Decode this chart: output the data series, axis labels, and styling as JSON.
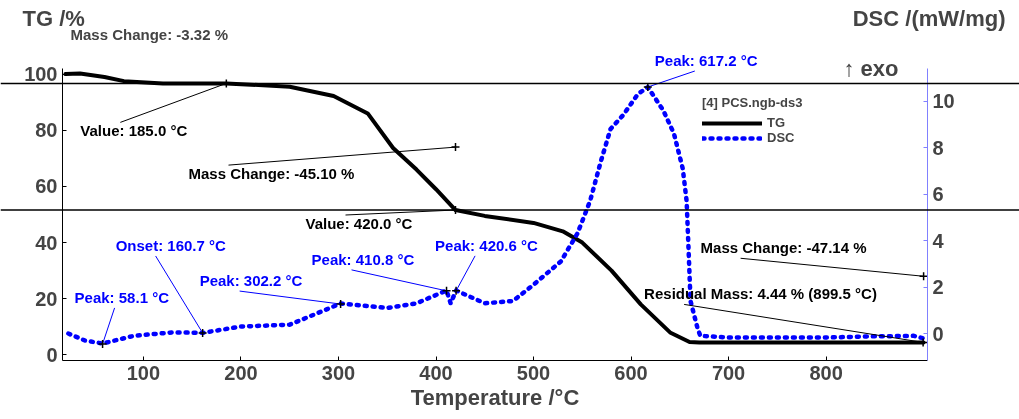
{
  "chart_data": {
    "type": "line",
    "xlabel": "Temperature /°C",
    "ylabel": "TG /%",
    "y2label": "DSC /(mW/mg)",
    "legend_title": "[4] PCS.ngb-ds3",
    "xlim": [
      17,
      904
    ],
    "xticks": [
      100,
      200,
      300,
      400,
      500,
      600,
      700,
      800
    ],
    "ylim": [
      -2,
      102
    ],
    "yticks": [
      0,
      20,
      40,
      60,
      80,
      100
    ],
    "y2lim": [
      -1.16,
      11.4
    ],
    "y2ticks": [
      0,
      2,
      4,
      6,
      8,
      10
    ],
    "grid": false,
    "legend": "top right",
    "series": [
      {
        "name": "TG",
        "color": "#000000",
        "line_style": "solid",
        "x": [
          20,
          35,
          60,
          80,
          120,
          185,
          250,
          295,
          330,
          356,
          380,
          400,
          420,
          450,
          500,
          530,
          550,
          580,
          610,
          640,
          660,
          670,
          900
        ],
        "values": [
          100,
          100.2,
          99,
          97.5,
          96.7,
          96.7,
          95.5,
          92.2,
          86,
          73.7,
          66,
          59,
          51.6,
          49.5,
          47,
          44,
          40,
          30,
          18,
          8,
          4.6,
          4.44,
          4.44
        ]
      },
      {
        "name": "DSC",
        "color": "#0000ff",
        "line_style": "dotted",
        "axis": "y2",
        "x": [
          23,
          40,
          58.1,
          90,
          130,
          160.7,
          200,
          250,
          302.2,
          350,
          380,
          410.8,
          415,
          420.6,
          450,
          479,
          500,
          528,
          545,
          558,
          569,
          579,
          592,
          607,
          617.2,
          633,
          644,
          653,
          657,
          659,
          661,
          668,
          671,
          700,
          800,
          850,
          890,
          899
        ],
        "values": [
          0,
          -0.3,
          -0.43,
          -0.1,
          0.05,
          0.03,
          0.3,
          0.38,
          1.29,
          1.1,
          1.3,
          1.85,
          1.3,
          1.85,
          1.3,
          1.4,
          2.1,
          3.1,
          4.3,
          5.7,
          7.4,
          8.8,
          9.4,
          10.3,
          10.6,
          9.6,
          8.6,
          7.1,
          5.7,
          3.6,
          1.4,
          0.26,
          -0.1,
          -0.17,
          -0.17,
          -0.12,
          -0.1,
          -0.2
        ]
      }
    ],
    "ref_lines": [
      {
        "axis": "y",
        "value": 96.7
      },
      {
        "axis": "y",
        "value": 51.6
      }
    ],
    "annotations": [
      "Mass Change: -3.32 %",
      {
        "text": "Value: 185.0 °C",
        "x": 185,
        "y": 96.7
      },
      {
        "text": "Mass Change: -45.10 %",
        "x": 420,
        "y": 74
      },
      {
        "text": "Value: 420.0 °C",
        "x": 420,
        "y": 51.6
      },
      {
        "text": "Mass Change: -47.14 %",
        "x": 900,
        "y": 28
      },
      {
        "text": "Residual Mass: 4.44 % (899.5 °C)",
        "x": 899.5,
        "y": 4.44
      },
      {
        "text": "Peak: 617.2 °C",
        "x": 617.2,
        "y": 95.4
      },
      {
        "text": "Peak: 58.1 °C",
        "x": 58.1,
        "y": 3.9
      },
      {
        "text": "Onset: 160.7 °C",
        "x": 160.7,
        "y": 7.8
      },
      {
        "text": "Peak: 302.2 °C",
        "x": 302.2,
        "y": 18.1
      },
      {
        "text": "Peak: 410.8 °C",
        "x": 410.8,
        "y": 22.8
      },
      {
        "text": "Peak: 420.6 °C",
        "x": 420.6,
        "y": 22.8
      },
      "↑ exo"
    ]
  }
}
